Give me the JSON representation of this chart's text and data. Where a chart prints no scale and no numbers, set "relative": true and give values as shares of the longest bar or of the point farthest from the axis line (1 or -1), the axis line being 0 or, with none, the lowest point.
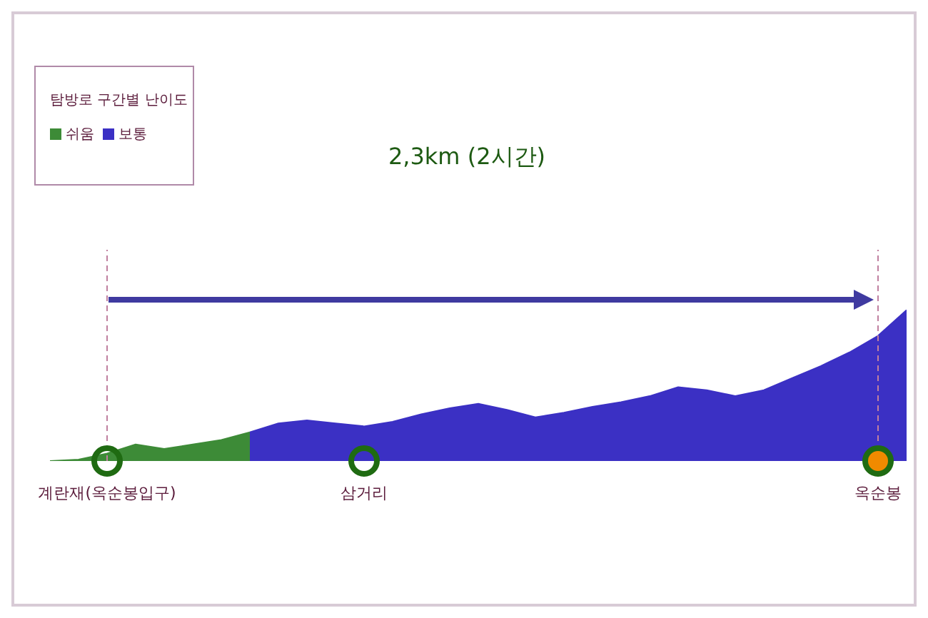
{
  "chart_data": {
    "type": "area",
    "title": "2,3km (2시간)",
    "legend_title": "탐방로 구간별 난이도",
    "legend": "top left",
    "relative": true,
    "categories": [
      null,
      null,
      "계란재(옥순봉입구)",
      null,
      null,
      null,
      null,
      null,
      null,
      null,
      null,
      "삼거리",
      null,
      null,
      null,
      null,
      null,
      null,
      null,
      null,
      null,
      null,
      null,
      null,
      null,
      null,
      null,
      null,
      null,
      "옥순봉",
      null
    ],
    "series": [
      {
        "name": "쉬움",
        "color": "#3d8b37",
        "values": [
          0,
          0.01,
          0.05,
          0.11,
          0.08,
          0.11,
          0.14,
          0.19,
          null,
          null,
          null,
          null,
          null,
          null,
          null,
          null,
          null,
          null,
          null,
          null,
          null,
          null,
          null,
          null,
          null,
          null,
          null,
          null,
          null,
          null,
          null
        ]
      },
      {
        "name": "보통",
        "color": "#3b30c4",
        "values": [
          null,
          null,
          null,
          null,
          null,
          null,
          null,
          0.19,
          0.25,
          0.27,
          0.25,
          0.23,
          0.26,
          0.31,
          0.35,
          0.38,
          0.34,
          0.29,
          0.32,
          0.36,
          0.39,
          0.43,
          0.49,
          0.47,
          0.43,
          0.47,
          0.55,
          0.63,
          0.72,
          0.83,
          1
        ]
      }
    ],
    "ref_lines": [
      {
        "axis": "x",
        "value": "계란재(옥순봉입구)",
        "color": "#c080a0",
        "line_style": "dashed"
      },
      {
        "axis": "x",
        "value": "옥순봉",
        "color": "#c080a0",
        "line_style": "dashed"
      }
    ]
  }
}
